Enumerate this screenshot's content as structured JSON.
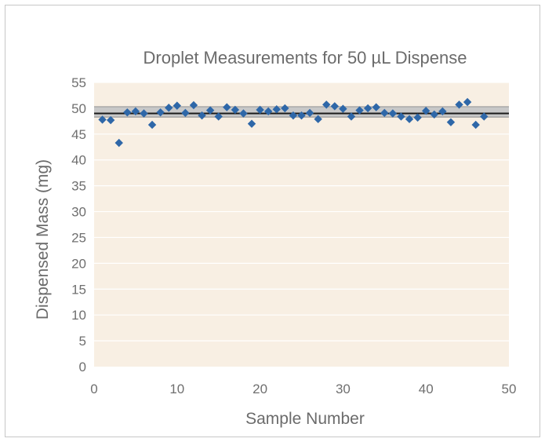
{
  "chart_data": {
    "type": "scatter",
    "title": "Droplet Measurements for 50 µL Dispense",
    "xlabel": "Sample Number",
    "ylabel": "Dispensed Mass (mg)",
    "xlim": [
      0,
      50
    ],
    "ylim": [
      0,
      55
    ],
    "x_ticks": [
      0,
      10,
      20,
      30,
      40,
      50
    ],
    "y_ticks": [
      0,
      5,
      10,
      15,
      20,
      25,
      30,
      35,
      40,
      45,
      50,
      55
    ],
    "grid": "horizontal",
    "legend": "none",
    "plot_background": "#f8efe3",
    "marker_color": "#2e67a8",
    "reference_lines": [
      {
        "y": 49.0,
        "color": "#1a1a1a"
      },
      {
        "y": 48.3,
        "color": "#9a9a9a"
      },
      {
        "y": 50.3,
        "color": "#9a9a9a"
      }
    ],
    "shaded_band": {
      "y_from": 48.3,
      "y_to": 50.3,
      "color": "#c8c8c8"
    },
    "x": [
      1,
      2,
      3,
      4,
      5,
      6,
      7,
      8,
      9,
      10,
      11,
      12,
      13,
      14,
      15,
      16,
      17,
      18,
      19,
      20,
      21,
      22,
      23,
      24,
      25,
      26,
      27,
      28,
      29,
      30,
      31,
      32,
      33,
      34,
      35,
      36,
      37,
      38,
      39,
      40,
      41,
      42,
      43,
      44,
      45,
      46,
      47
    ],
    "y": [
      47.8,
      47.7,
      43.3,
      49.2,
      49.4,
      49.0,
      46.8,
      49.2,
      50.1,
      50.5,
      49.1,
      50.6,
      48.6,
      49.6,
      48.4,
      50.2,
      49.7,
      49.0,
      47.0,
      49.7,
      49.4,
      49.8,
      50.0,
      48.6,
      48.6,
      49.1,
      47.9,
      50.7,
      50.4,
      49.9,
      48.4,
      49.6,
      50.0,
      50.2,
      49.1,
      49.0,
      48.4,
      47.9,
      48.2,
      49.5,
      48.8,
      49.4,
      47.3,
      50.7,
      51.2,
      46.8,
      48.4
    ]
  }
}
